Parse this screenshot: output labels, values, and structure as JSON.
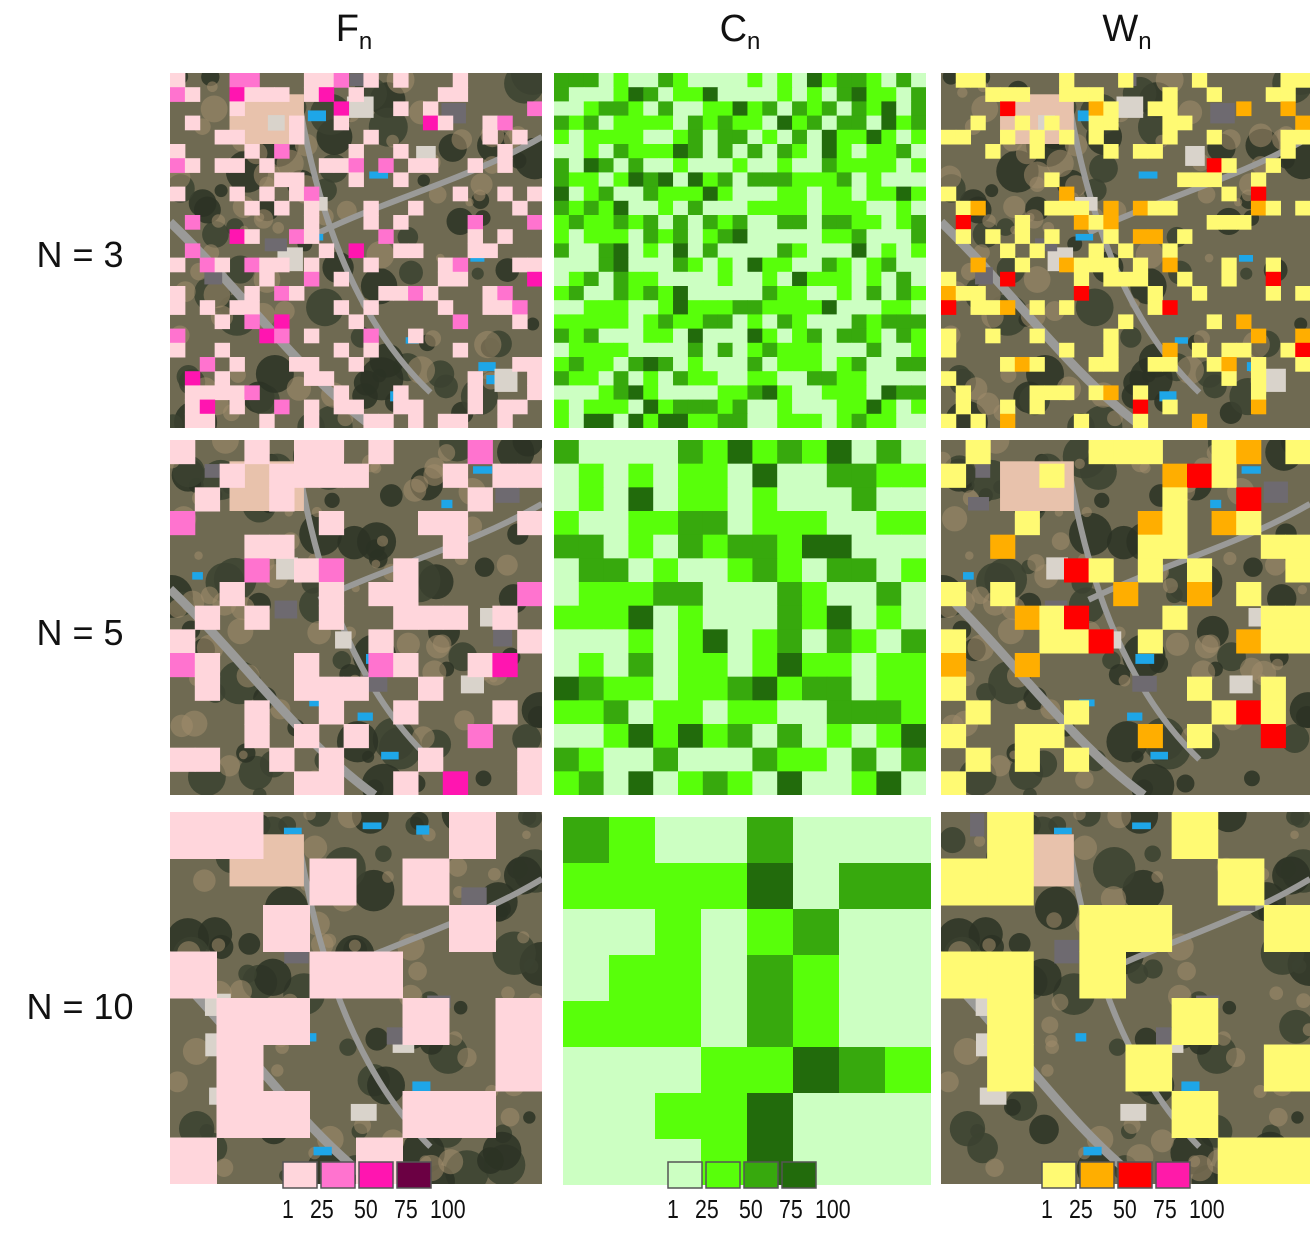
{
  "columns": [
    {
      "letter": "F",
      "sub": "n",
      "palette": [
        "#ffd6dc",
        "#ff73cf",
        "#ff15b0",
        "#6b0043"
      ]
    },
    {
      "letter": "C",
      "sub": "n",
      "palette": [
        "#ccffc2",
        "#58ff0a",
        "#37a90d",
        "#226b0c"
      ]
    },
    {
      "letter": "W",
      "sub": "n",
      "palette": [
        "#fffa73",
        "#ffae00",
        "#ff0000",
        "#ff1aa9"
      ]
    }
  ],
  "rows": [
    {
      "label": "N = 3",
      "grid": 25
    },
    {
      "label": "N = 5",
      "grid": 15
    },
    {
      "label": "N = 10",
      "grid": 8
    }
  ],
  "legend": {
    "ticks": [
      "1",
      "25",
      "50",
      "75",
      "100"
    ]
  },
  "colors": {
    "aerial_base": "#6f6a52",
    "road": "#9a9a98",
    "pool": "#1ea6e8",
    "roof": "#e8c2ac"
  }
}
